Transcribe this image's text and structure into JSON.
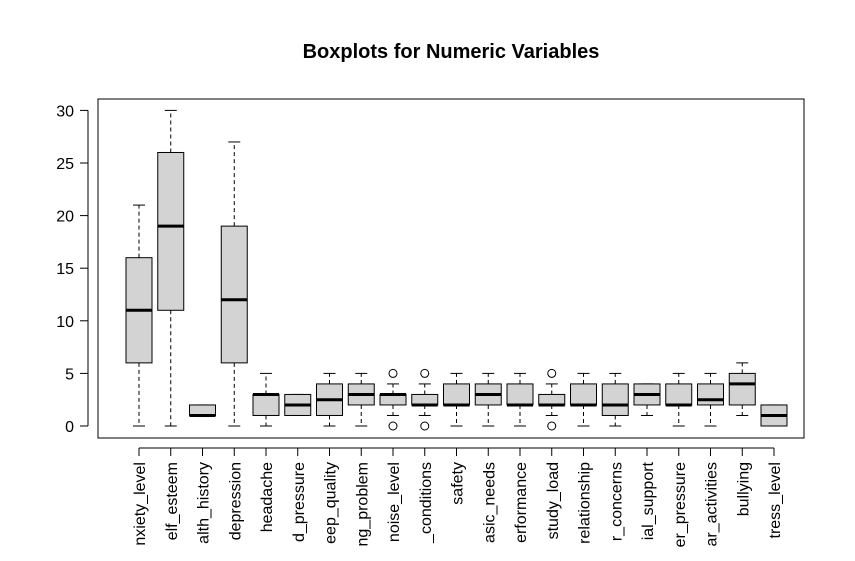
{
  "chart_data": {
    "type": "box",
    "title": "Boxplots for Numeric Variables",
    "xlabel": "",
    "ylabel": "",
    "ylim": [
      -1.2,
      31.2
    ],
    "yticks": [
      0,
      5,
      10,
      15,
      20,
      25,
      30
    ],
    "categories": [
      "nxiety_level",
      "elf_esteem",
      "alth_history",
      "depression",
      "headache",
      "d_pressure",
      "eep_quality",
      "ng_problem",
      "noise_level",
      "_conditions",
      "safety",
      "asic_needs",
      "erformance",
      "study_load",
      "relationship",
      "r_concerns",
      "ial_support",
      "er_pressure",
      "ar_activities",
      "bullying",
      "tress_level"
    ],
    "boxes": [
      {
        "min": 0,
        "q1": 6,
        "median": 11,
        "q3": 16,
        "max": 21,
        "outliers": []
      },
      {
        "min": 0,
        "q1": 11,
        "median": 19,
        "q3": 26,
        "max": 30,
        "outliers": []
      },
      {
        "min": 0.9,
        "q1": 1,
        "median": 1,
        "q3": 2,
        "max": 2,
        "outliers": []
      },
      {
        "min": 0,
        "q1": 6,
        "median": 12,
        "q3": 19,
        "max": 27,
        "outliers": []
      },
      {
        "min": 0,
        "q1": 1,
        "median": 3,
        "q3": 3,
        "max": 5,
        "outliers": []
      },
      {
        "min": 1,
        "q1": 1,
        "median": 2,
        "q3": 3,
        "max": 3,
        "outliers": []
      },
      {
        "min": 0,
        "q1": 1,
        "median": 2.5,
        "q3": 4,
        "max": 5,
        "outliers": []
      },
      {
        "min": 0,
        "q1": 2,
        "median": 3,
        "q3": 4,
        "max": 5,
        "outliers": []
      },
      {
        "min": 1,
        "q1": 2,
        "median": 3,
        "q3": 3,
        "max": 4,
        "outliers": [
          0,
          5
        ]
      },
      {
        "min": 1,
        "q1": 2,
        "median": 2,
        "q3": 3,
        "max": 4,
        "outliers": [
          0,
          5
        ]
      },
      {
        "min": 0,
        "q1": 2,
        "median": 2,
        "q3": 4,
        "max": 5,
        "outliers": []
      },
      {
        "min": 0,
        "q1": 2,
        "median": 3,
        "q3": 4,
        "max": 5,
        "outliers": []
      },
      {
        "min": 0,
        "q1": 2,
        "median": 2,
        "q3": 4,
        "max": 5,
        "outliers": []
      },
      {
        "min": 1,
        "q1": 2,
        "median": 2,
        "q3": 3,
        "max": 4,
        "outliers": [
          0,
          5
        ]
      },
      {
        "min": 0,
        "q1": 2,
        "median": 2,
        "q3": 4,
        "max": 5,
        "outliers": []
      },
      {
        "min": 0,
        "q1": 1,
        "median": 2,
        "q3": 4,
        "max": 5,
        "outliers": []
      },
      {
        "min": 1,
        "q1": 2,
        "median": 3,
        "q3": 4,
        "max": 4,
        "outliers": []
      },
      {
        "min": 0,
        "q1": 2,
        "median": 2,
        "q3": 4,
        "max": 5,
        "outliers": []
      },
      {
        "min": 0,
        "q1": 2,
        "median": 2.5,
        "q3": 4,
        "max": 5,
        "outliers": []
      },
      {
        "min": 1,
        "q1": 2,
        "median": 4,
        "q3": 5,
        "max": 6,
        "outliers": []
      },
      {
        "min": 0,
        "q1": 0,
        "median": 1,
        "q3": 2,
        "max": 2,
        "outliers": []
      }
    ],
    "box_fill": "#d3d3d3",
    "grid": false,
    "legend": "none"
  }
}
